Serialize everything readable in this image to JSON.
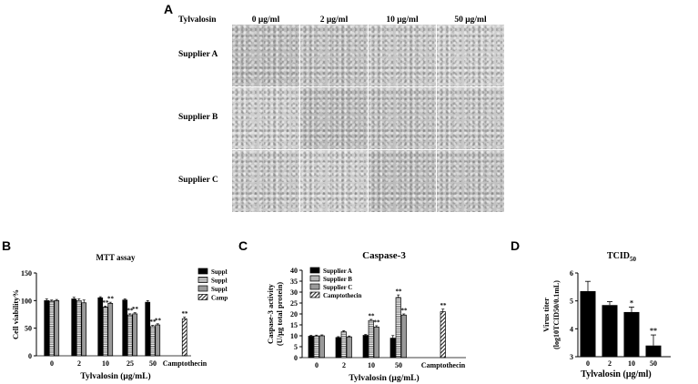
{
  "panelA": {
    "letter": "A",
    "treatment_label": "Tylvalosin",
    "columns": [
      "0 μg/ml",
      "2 μg/ml",
      "10 μg/ml",
      "50 μg/ml"
    ],
    "rows": [
      "Supplier A",
      "Supplier B",
      "Supplier C"
    ]
  },
  "panelB": {
    "letter": "B"
  },
  "panelC": {
    "letter": "C"
  },
  "panelD": {
    "letter": "D"
  },
  "chart_data": [
    {
      "type": "bar",
      "title": "MTT assay",
      "xlabel": "Tylvalosin (μg/mL)",
      "ylabel": "Cell viability%",
      "categories": [
        "0",
        "2",
        "10",
        "25",
        "50",
        "Camptothecin"
      ],
      "ylim": [
        0,
        150
      ],
      "yticks": [
        0,
        50,
        100,
        150
      ],
      "legend": "right",
      "series": [
        {
          "name": "Supplier A",
          "values": [
            100,
            103,
            105,
            101,
            97,
            null
          ],
          "errors": [
            3,
            3,
            2,
            2,
            3,
            null
          ],
          "sig": [
            "",
            "",
            "",
            "",
            "",
            ""
          ],
          "pattern": "solid",
          "color": "#000000"
        },
        {
          "name": "Supplier B",
          "values": [
            99,
            100,
            88,
            74,
            53,
            null
          ],
          "errors": [
            2,
            3,
            2,
            2,
            2,
            null
          ],
          "sig": [
            "",
            "",
            "**",
            "**",
            "**",
            ""
          ],
          "pattern": "hstripe",
          "color": "#ffffff"
        },
        {
          "name": "Supplier C",
          "values": [
            100,
            96,
            95,
            76,
            56,
            null
          ],
          "errors": [
            2,
            5,
            2,
            2,
            2,
            null
          ],
          "sig": [
            "",
            "",
            "**",
            "**",
            "**",
            ""
          ],
          "pattern": "gray",
          "color": "#9a9a9a"
        },
        {
          "name": "Camptothecin",
          "values": [
            null,
            null,
            null,
            null,
            null,
            67
          ],
          "errors": [
            null,
            null,
            null,
            null,
            null,
            3
          ],
          "sig": [
            "",
            "",
            "",
            "",
            "",
            "**"
          ],
          "pattern": "diag",
          "color": "#ffffff"
        }
      ]
    },
    {
      "type": "bar",
      "title": "Caspase-3",
      "xlabel": "Tylvalosin (μg/mL)",
      "ylabel": "Caspase-3 activity (U/μg total protein)",
      "categories": [
        "0",
        "2",
        "10",
        "50",
        "Camptothecin"
      ],
      "ylim": [
        0,
        40
      ],
      "yticks": [
        0,
        5,
        10,
        15,
        20,
        25,
        30,
        35,
        40
      ],
      "legend": "top-left",
      "series": [
        {
          "name": "Supplier A",
          "values": [
            9.8,
            9.2,
            10.2,
            8.9,
            null
          ],
          "errors": [
            0.4,
            0.4,
            0.4,
            1.2,
            null
          ],
          "sig": [
            "",
            "",
            "",
            "",
            ""
          ],
          "pattern": "solid",
          "color": "#000000"
        },
        {
          "name": "Supplier B",
          "values": [
            9.9,
            11.8,
            17,
            27.5,
            null
          ],
          "errors": [
            0.4,
            0.5,
            0.5,
            1.2,
            null
          ],
          "sig": [
            "",
            "",
            "**",
            "**",
            ""
          ],
          "pattern": "hstripe",
          "color": "#ffffff"
        },
        {
          "name": "Supplier C",
          "values": [
            10,
            9.5,
            14,
            19.5,
            null
          ],
          "errors": [
            0.4,
            0.4,
            0.6,
            0.5,
            null
          ],
          "sig": [
            "",
            "",
            "**",
            "**",
            ""
          ],
          "pattern": "gray",
          "color": "#9a9a9a"
        },
        {
          "name": "Camptothecin",
          "values": [
            null,
            null,
            null,
            null,
            21
          ],
          "errors": [
            null,
            null,
            null,
            null,
            1.2
          ],
          "sig": [
            "",
            "",
            "",
            "",
            "**"
          ],
          "pattern": "diag",
          "color": "#ffffff"
        }
      ]
    },
    {
      "type": "bar",
      "title": "TCID50",
      "title_main": "TCID",
      "title_sub": "50",
      "xlabel": "Tylvalosin (μg/ml)",
      "ylabel_line1": "Virus titer",
      "ylabel_line2": "(log10TCID50/0.1mL)",
      "categories": [
        "0",
        "2",
        "10",
        "50"
      ],
      "ylim": [
        3,
        6
      ],
      "yticks": [
        3,
        4,
        5,
        6
      ],
      "values": [
        5.35,
        4.85,
        4.6,
        3.4
      ],
      "errors": [
        0.35,
        0.12,
        0.18,
        0.38
      ],
      "sig": [
        "",
        "",
        "*",
        "**"
      ],
      "color": "#000000"
    }
  ]
}
